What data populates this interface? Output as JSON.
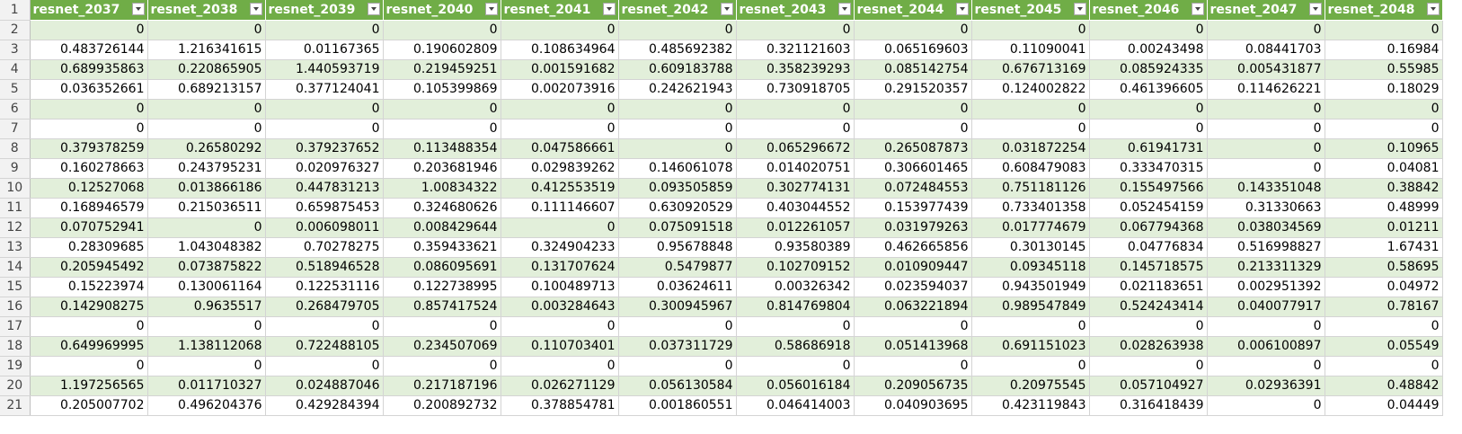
{
  "columns": [
    "resnet_2037",
    "resnet_2038",
    "resnet_2039",
    "resnet_2040",
    "resnet_2041",
    "resnet_2042",
    "resnet_2043",
    "resnet_2044",
    "resnet_2045",
    "resnet_2046",
    "resnet_2047",
    "resnet_2048"
  ],
  "header_row_number": "1",
  "rows": [
    {
      "n": "2",
      "c": [
        "0",
        "0",
        "0",
        "0",
        "0",
        "0",
        "0",
        "0",
        "0",
        "0",
        "0",
        "0"
      ]
    },
    {
      "n": "3",
      "c": [
        "0.483726144",
        "1.216341615",
        "0.01167365",
        "0.190602809",
        "0.108634964",
        "0.485692382",
        "0.321121603",
        "0.065169603",
        "0.11090041",
        "0.00243498",
        "0.08441703",
        "0.16984"
      ]
    },
    {
      "n": "4",
      "c": [
        "0.689935863",
        "0.220865905",
        "1.440593719",
        "0.219459251",
        "0.001591682",
        "0.609183788",
        "0.358239293",
        "0.085142754",
        "0.676713169",
        "0.085924335",
        "0.005431877",
        "0.55985"
      ]
    },
    {
      "n": "5",
      "c": [
        "0.036352661",
        "0.689213157",
        "0.377124041",
        "0.105399869",
        "0.002073916",
        "0.242621943",
        "0.730918705",
        "0.291520357",
        "0.124002822",
        "0.461396605",
        "0.114626221",
        "0.18029"
      ]
    },
    {
      "n": "6",
      "c": [
        "0",
        "0",
        "0",
        "0",
        "0",
        "0",
        "0",
        "0",
        "0",
        "0",
        "0",
        "0"
      ]
    },
    {
      "n": "7",
      "c": [
        "0",
        "0",
        "0",
        "0",
        "0",
        "0",
        "0",
        "0",
        "0",
        "0",
        "0",
        "0"
      ]
    },
    {
      "n": "8",
      "c": [
        "0.379378259",
        "0.26580292",
        "0.379237652",
        "0.113488354",
        "0.047586661",
        "0",
        "0.065296672",
        "0.265087873",
        "0.031872254",
        "0.61941731",
        "0",
        "0.10965"
      ]
    },
    {
      "n": "9",
      "c": [
        "0.160278663",
        "0.243795231",
        "0.020976327",
        "0.203681946",
        "0.029839262",
        "0.146061078",
        "0.014020751",
        "0.306601465",
        "0.608479083",
        "0.333470315",
        "0",
        "0.04081"
      ]
    },
    {
      "n": "10",
      "c": [
        "0.12527068",
        "0.013866186",
        "0.447831213",
        "1.00834322",
        "0.412553519",
        "0.093505859",
        "0.302774131",
        "0.072484553",
        "0.751181126",
        "0.155497566",
        "0.143351048",
        "0.38842"
      ]
    },
    {
      "n": "11",
      "c": [
        "0.168946579",
        "0.215036511",
        "0.659875453",
        "0.324680626",
        "0.111146607",
        "0.630920529",
        "0.403044552",
        "0.153977439",
        "0.733401358",
        "0.052454159",
        "0.31330663",
        "0.48999"
      ]
    },
    {
      "n": "12",
      "c": [
        "0.070752941",
        "0",
        "0.006098011",
        "0.008429644",
        "0",
        "0.075091518",
        "0.012261057",
        "0.031979263",
        "0.017774679",
        "0.067794368",
        "0.038034569",
        "0.01211"
      ]
    },
    {
      "n": "13",
      "c": [
        "0.28309685",
        "1.043048382",
        "0.70278275",
        "0.359433621",
        "0.324904233",
        "0.95678848",
        "0.93580389",
        "0.462665856",
        "0.30130145",
        "0.04776834",
        "0.516998827",
        "1.67431"
      ]
    },
    {
      "n": "14",
      "c": [
        "0.205945492",
        "0.073875822",
        "0.518946528",
        "0.086095691",
        "0.131707624",
        "0.5479877",
        "0.102709152",
        "0.010909447",
        "0.09345118",
        "0.145718575",
        "0.213311329",
        "0.58695"
      ]
    },
    {
      "n": "15",
      "c": [
        "0.15223974",
        "0.130061164",
        "0.122531116",
        "0.122738995",
        "0.100489713",
        "0.03624611",
        "0.00326342",
        "0.023594037",
        "0.943501949",
        "0.021183651",
        "0.002951392",
        "0.04972"
      ]
    },
    {
      "n": "16",
      "c": [
        "0.142908275",
        "0.9635517",
        "0.268479705",
        "0.857417524",
        "0.003284643",
        "0.300945967",
        "0.814769804",
        "0.063221894",
        "0.989547849",
        "0.524243414",
        "0.040077917",
        "0.78167"
      ]
    },
    {
      "n": "17",
      "c": [
        "0",
        "0",
        "0",
        "0",
        "0",
        "0",
        "0",
        "0",
        "0",
        "0",
        "0",
        "0"
      ]
    },
    {
      "n": "18",
      "c": [
        "0.649969995",
        "1.138112068",
        "0.722488105",
        "0.234507069",
        "0.110703401",
        "0.037311729",
        "0.58686918",
        "0.051413968",
        "0.691151023",
        "0.028263938",
        "0.006100897",
        "0.05549"
      ]
    },
    {
      "n": "19",
      "c": [
        "0",
        "0",
        "0",
        "0",
        "0",
        "0",
        "0",
        "0",
        "0",
        "0",
        "0",
        "0"
      ]
    },
    {
      "n": "20",
      "c": [
        "1.197256565",
        "0.011710327",
        "0.024887046",
        "0.217187196",
        "0.026271129",
        "0.056130584",
        "0.056016184",
        "0.209056735",
        "0.20975545",
        "0.057104927",
        "0.02936391",
        "0.48842"
      ]
    },
    {
      "n": "21",
      "c": [
        "0.205007702",
        "0.496204376",
        "0.429284394",
        "0.200892732",
        "0.378854781",
        "0.001860551",
        "0.046414003",
        "0.040903695",
        "0.423119843",
        "0.316418439",
        "0",
        "0.04449"
      ]
    }
  ]
}
